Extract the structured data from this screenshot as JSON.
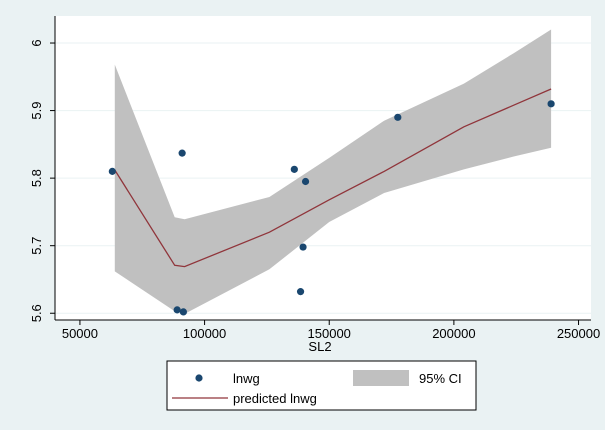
{
  "chart_data": {
    "type": "scatter",
    "title": "",
    "xlabel": "SL2",
    "ylabel": "",
    "xlim": [
      40000,
      255000
    ],
    "ylim": [
      5.59,
      6.04
    ],
    "xticks": [
      50000,
      100000,
      150000,
      200000,
      250000
    ],
    "xtick_labels": [
      "50000",
      "100000",
      "150000",
      "200000",
      "250000"
    ],
    "yticks": [
      5.6,
      5.7,
      5.8,
      5.9,
      6.0
    ],
    "ytick_labels": [
      "5.6",
      "5.7",
      "5.8",
      "5.9",
      "6"
    ],
    "grid": "horizontal",
    "legend_position": "bottom",
    "points": {
      "name": "lnwg",
      "color": "#1a476f",
      "x": [
        63000,
        89000,
        91000,
        91500,
        136000,
        138500,
        139500,
        140500,
        177500,
        239000
      ],
      "y": [
        5.81,
        5.605,
        5.837,
        5.602,
        5.813,
        5.632,
        5.698,
        5.795,
        5.89,
        5.91
      ]
    },
    "fit": {
      "name": "predicted lnwg",
      "color": "#90353b",
      "x": [
        64000,
        88000,
        92000,
        126000,
        150000,
        172000,
        204000,
        224000,
        239000
      ],
      "y": [
        5.812,
        5.671,
        5.669,
        5.72,
        5.768,
        5.81,
        5.876,
        5.908,
        5.932
      ]
    },
    "ci": {
      "name": "95% CI",
      "color": "#c0c0c0",
      "x": [
        64000,
        88000,
        92000,
        126000,
        150000,
        172000,
        204000,
        224000,
        239000
      ],
      "upper": [
        5.968,
        5.742,
        5.739,
        5.772,
        5.83,
        5.885,
        5.94,
        5.985,
        6.02
      ],
      "lower": [
        5.662,
        5.603,
        5.599,
        5.665,
        5.735,
        5.778,
        5.813,
        5.832,
        5.845
      ]
    }
  },
  "legend": {
    "points_label": "lnwg",
    "ci_label": "95% CI",
    "fit_label": "predicted lnwg"
  }
}
